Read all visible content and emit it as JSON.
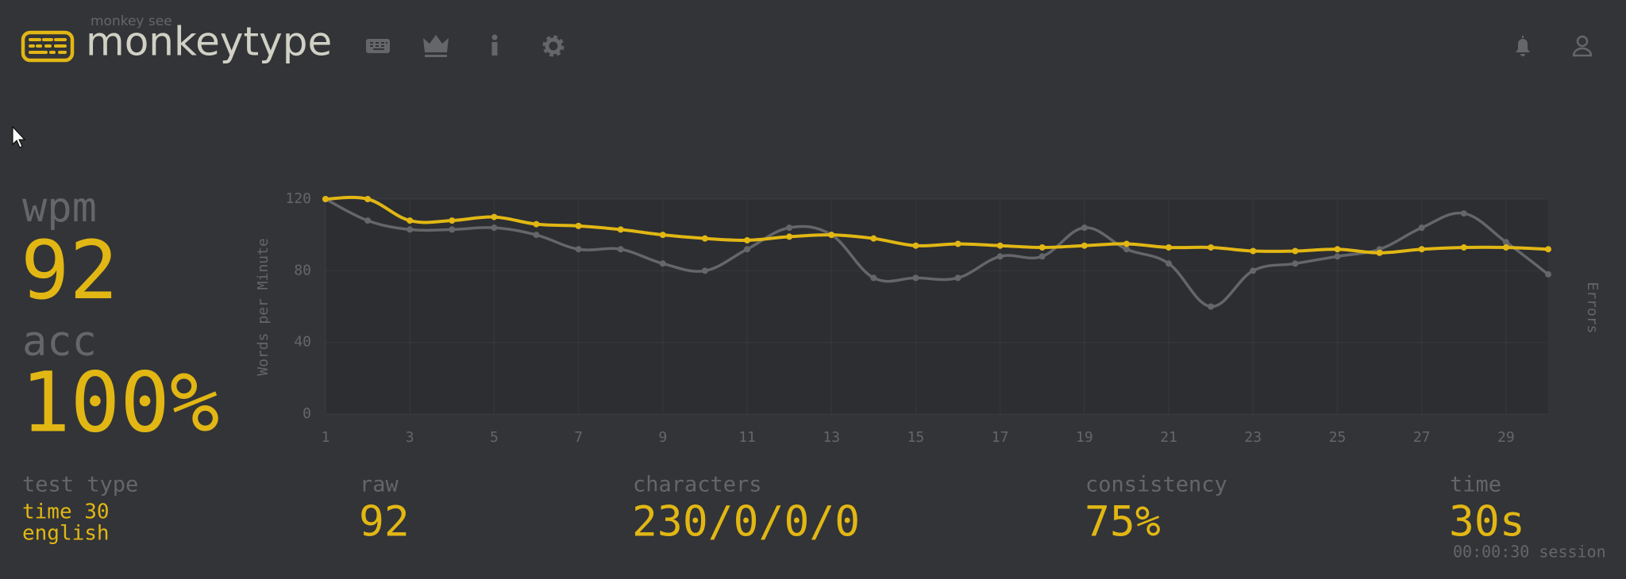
{
  "header": {
    "tagline": "monkey see",
    "title": "monkeytype"
  },
  "stats": {
    "wpm": {
      "label": "wpm",
      "value": 92
    },
    "acc": {
      "label": "acc",
      "value": "100%"
    },
    "test_type": {
      "label": "test type",
      "lines": [
        "time 30",
        "english"
      ]
    },
    "raw": {
      "label": "raw",
      "value": 92
    },
    "characters": {
      "label": "characters",
      "value": "230/0/0/0"
    },
    "consistency": {
      "label": "consistency",
      "value": "75%"
    },
    "time": {
      "label": "time",
      "value": "30s",
      "session": "00:00:30 session"
    }
  },
  "chart_data": {
    "type": "line",
    "x": [
      1,
      2,
      3,
      4,
      5,
      6,
      7,
      8,
      9,
      10,
      11,
      12,
      13,
      14,
      15,
      16,
      17,
      18,
      19,
      20,
      21,
      22,
      23,
      24,
      25,
      26,
      27,
      28,
      29,
      30
    ],
    "series": [
      {
        "color": "#e2b714",
        "values": [
          120,
          120,
          108,
          108,
          110,
          106,
          105,
          103,
          100,
          98,
          97,
          99,
          100,
          98,
          94,
          95,
          94,
          93,
          94,
          95,
          93,
          93,
          91,
          91,
          92,
          90,
          92,
          93,
          93,
          92
        ]
      },
      {
        "color": "#646669",
        "values": [
          120,
          108,
          103,
          103,
          104,
          100,
          92,
          92,
          84,
          80,
          92,
          104,
          100,
          76,
          76,
          76,
          88,
          88,
          104,
          92,
          84,
          60,
          80,
          84,
          88,
          92,
          104,
          112,
          96,
          78
        ]
      }
    ],
    "xlim": [
      1,
      30
    ],
    "xticks": [
      1,
      3,
      5,
      7,
      9,
      11,
      13,
      15,
      17,
      19,
      21,
      23,
      25,
      27,
      29
    ],
    "ylim": [
      0,
      120
    ],
    "yticks": [
      0,
      40,
      80,
      120
    ],
    "y_label": "Words per Minute",
    "y2_label": "Errors",
    "grid": true
  }
}
